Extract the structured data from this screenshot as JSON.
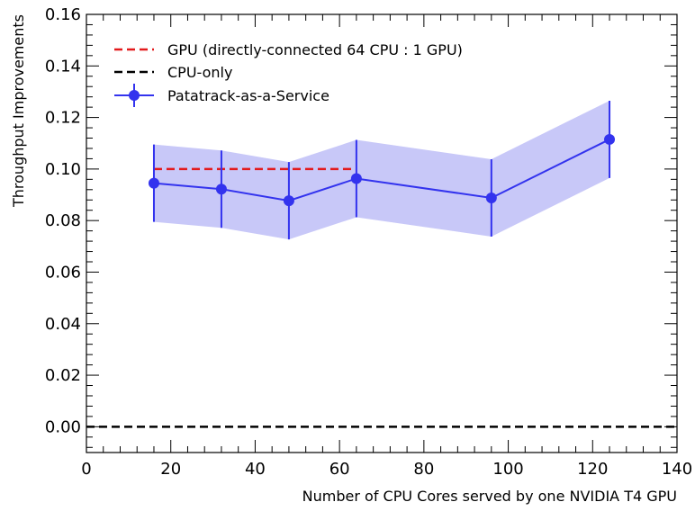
{
  "chart_data": {
    "type": "line",
    "title": "",
    "xlabel": "Number of CPU Cores served by one NVIDIA T4 GPU",
    "ylabel": "Throughput Improvements",
    "xlim": [
      0,
      140
    ],
    "ylim": [
      -0.01,
      0.16
    ],
    "xticks": [
      0,
      20,
      40,
      60,
      80,
      100,
      120,
      140
    ],
    "yticks": [
      0.0,
      0.02,
      0.04,
      0.06,
      0.08,
      0.1,
      0.12,
      0.14,
      0.16
    ],
    "xtick_labels": [
      "0",
      "20",
      "40",
      "60",
      "80",
      "100",
      "120",
      "140"
    ],
    "ytick_labels": [
      "0.00",
      "0.02",
      "0.04",
      "0.06",
      "0.08",
      "0.10",
      "0.12",
      "0.14",
      "0.16"
    ],
    "grid": false,
    "legend_position": "top-left",
    "series": [
      {
        "name": "GPU (directly-connected 64 CPU : 1 GPU)",
        "style": "dashed",
        "color": "#e31a1c",
        "x": [
          16,
          64
        ],
        "y": [
          0.1,
          0.1
        ]
      },
      {
        "name": "CPU-only",
        "style": "dashed",
        "color": "#000000",
        "x": [
          0,
          140
        ],
        "y": [
          0.0,
          0.0
        ]
      },
      {
        "name": "Patatrack-as-a-Service",
        "style": "line-markers-errorbars-band",
        "color": "#3333ee",
        "band_color": "#c8c8f8",
        "x": [
          16,
          32,
          48,
          64,
          96,
          124
        ],
        "y": [
          0.0945,
          0.0922,
          0.0877,
          0.0963,
          0.0888,
          0.1115
        ],
        "yerr": [
          0.015,
          0.015,
          0.015,
          0.015,
          0.015,
          0.015
        ]
      }
    ]
  }
}
